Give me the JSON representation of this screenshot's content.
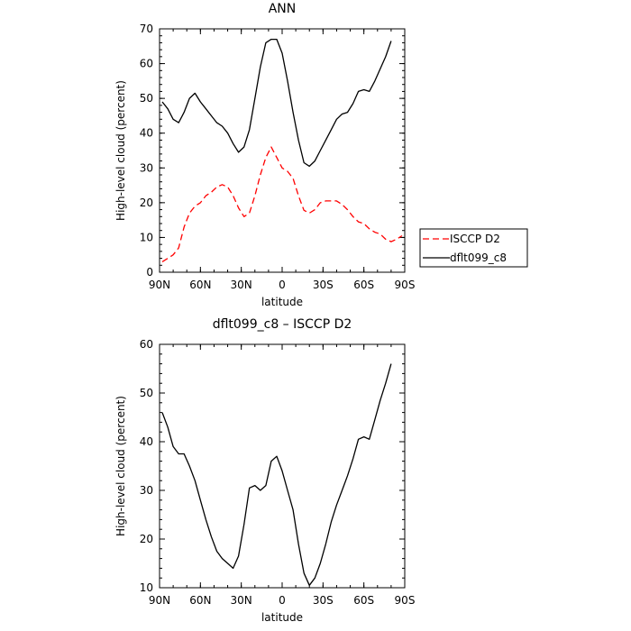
{
  "chart_data": [
    {
      "type": "line",
      "title": "ANN",
      "xlabel": "latitude",
      "ylabel": "High-level cloud (percent)",
      "ylim": [
        0,
        70
      ],
      "yticks": [
        0,
        10,
        20,
        30,
        40,
        50,
        60,
        70
      ],
      "xlim": [
        90,
        -90
      ],
      "xtick_labels": [
        "90N",
        "60N",
        "30N",
        "0",
        "30S",
        "60S",
        "90S"
      ],
      "legend_position": "right",
      "grid": false,
      "series": [
        {
          "name": "ISCCP D2",
          "color": "#ff0000",
          "style": "dashed",
          "x": [
            88,
            84,
            80,
            76,
            72,
            68,
            64,
            60,
            56,
            52,
            48,
            44,
            40,
            36,
            32,
            28,
            24,
            20,
            16,
            12,
            8,
            4,
            0,
            -4,
            -8,
            -12,
            -16,
            -20,
            -24,
            -28,
            -32,
            -36,
            -40,
            -44,
            -48,
            -52,
            -56,
            -60,
            -64,
            -68,
            -72,
            -76,
            -80,
            -84,
            -88
          ],
          "y": [
            3,
            4,
            5,
            7,
            13,
            17,
            19,
            20,
            22,
            23,
            24.5,
            25.2,
            24.5,
            22,
            18.5,
            16,
            17,
            22,
            28,
            33,
            36,
            33,
            30,
            29,
            27,
            22,
            17.8,
            17,
            18,
            20,
            20.5,
            20.5,
            20.5,
            19.5,
            18,
            16,
            14.5,
            14,
            12.5,
            11.5,
            11,
            9.5,
            8.8,
            9.5,
            10.5
          ]
        },
        {
          "name": "dflt099_c8",
          "color": "#000000",
          "style": "solid",
          "x": [
            88,
            84,
            80,
            76,
            72,
            68,
            64,
            60,
            56,
            52,
            48,
            44,
            40,
            36,
            32,
            28,
            24,
            20,
            16,
            12,
            8,
            4,
            0,
            -4,
            -8,
            -12,
            -16,
            -20,
            -24,
            -28,
            -32,
            -36,
            -40,
            -44,
            -48,
            -52,
            -56,
            -60,
            -64,
            -68,
            -72,
            -76,
            -80,
            -84,
            -88
          ],
          "y": [
            49,
            47,
            44,
            43,
            46,
            50,
            51.5,
            49,
            47,
            45,
            43,
            42,
            40,
            37,
            34.5,
            36,
            41,
            50,
            59,
            66,
            67,
            67,
            63,
            55,
            46,
            38,
            31.5,
            30.5,
            32,
            35,
            38,
            41,
            44,
            45.5,
            46,
            48.5,
            52,
            52.5,
            52,
            55,
            58.5,
            62,
            66.5,
            null,
            null
          ]
        }
      ]
    },
    {
      "type": "line",
      "title": "dflt099_c8 – ISCCP D2",
      "xlabel": "latitude",
      "ylabel": "High-level cloud (percent)",
      "ylim": [
        10,
        60
      ],
      "yticks": [
        10,
        20,
        30,
        40,
        50,
        60
      ],
      "xlim": [
        90,
        -90
      ],
      "xtick_labels": [
        "90N",
        "60N",
        "30N",
        "0",
        "30S",
        "60S",
        "90S"
      ],
      "grid": false,
      "series": [
        {
          "color": "#000000",
          "style": "solid",
          "x": [
            88,
            84,
            80,
            76,
            72,
            68,
            64,
            60,
            56,
            52,
            48,
            44,
            40,
            36,
            32,
            28,
            24,
            20,
            16,
            12,
            8,
            4,
            0,
            -4,
            -8,
            -12,
            -16,
            -20,
            -24,
            -28,
            -32,
            -36,
            -40,
            -44,
            -48,
            -52,
            -56,
            -60,
            -64,
            -68,
            -72,
            -76,
            -80,
            -84,
            -88
          ],
          "y": [
            46,
            43,
            39,
            37.5,
            37.5,
            35,
            32,
            28,
            24,
            20.5,
            17.5,
            16,
            15,
            14,
            16.5,
            23,
            30.5,
            31,
            30,
            31,
            36,
            37,
            34,
            30,
            26,
            19,
            13,
            10.5,
            12,
            15,
            19,
            23.5,
            27,
            30,
            33,
            36.5,
            40.5,
            41,
            40.5,
            44.5,
            48.5,
            52,
            56,
            null,
            null
          ]
        }
      ]
    }
  ]
}
